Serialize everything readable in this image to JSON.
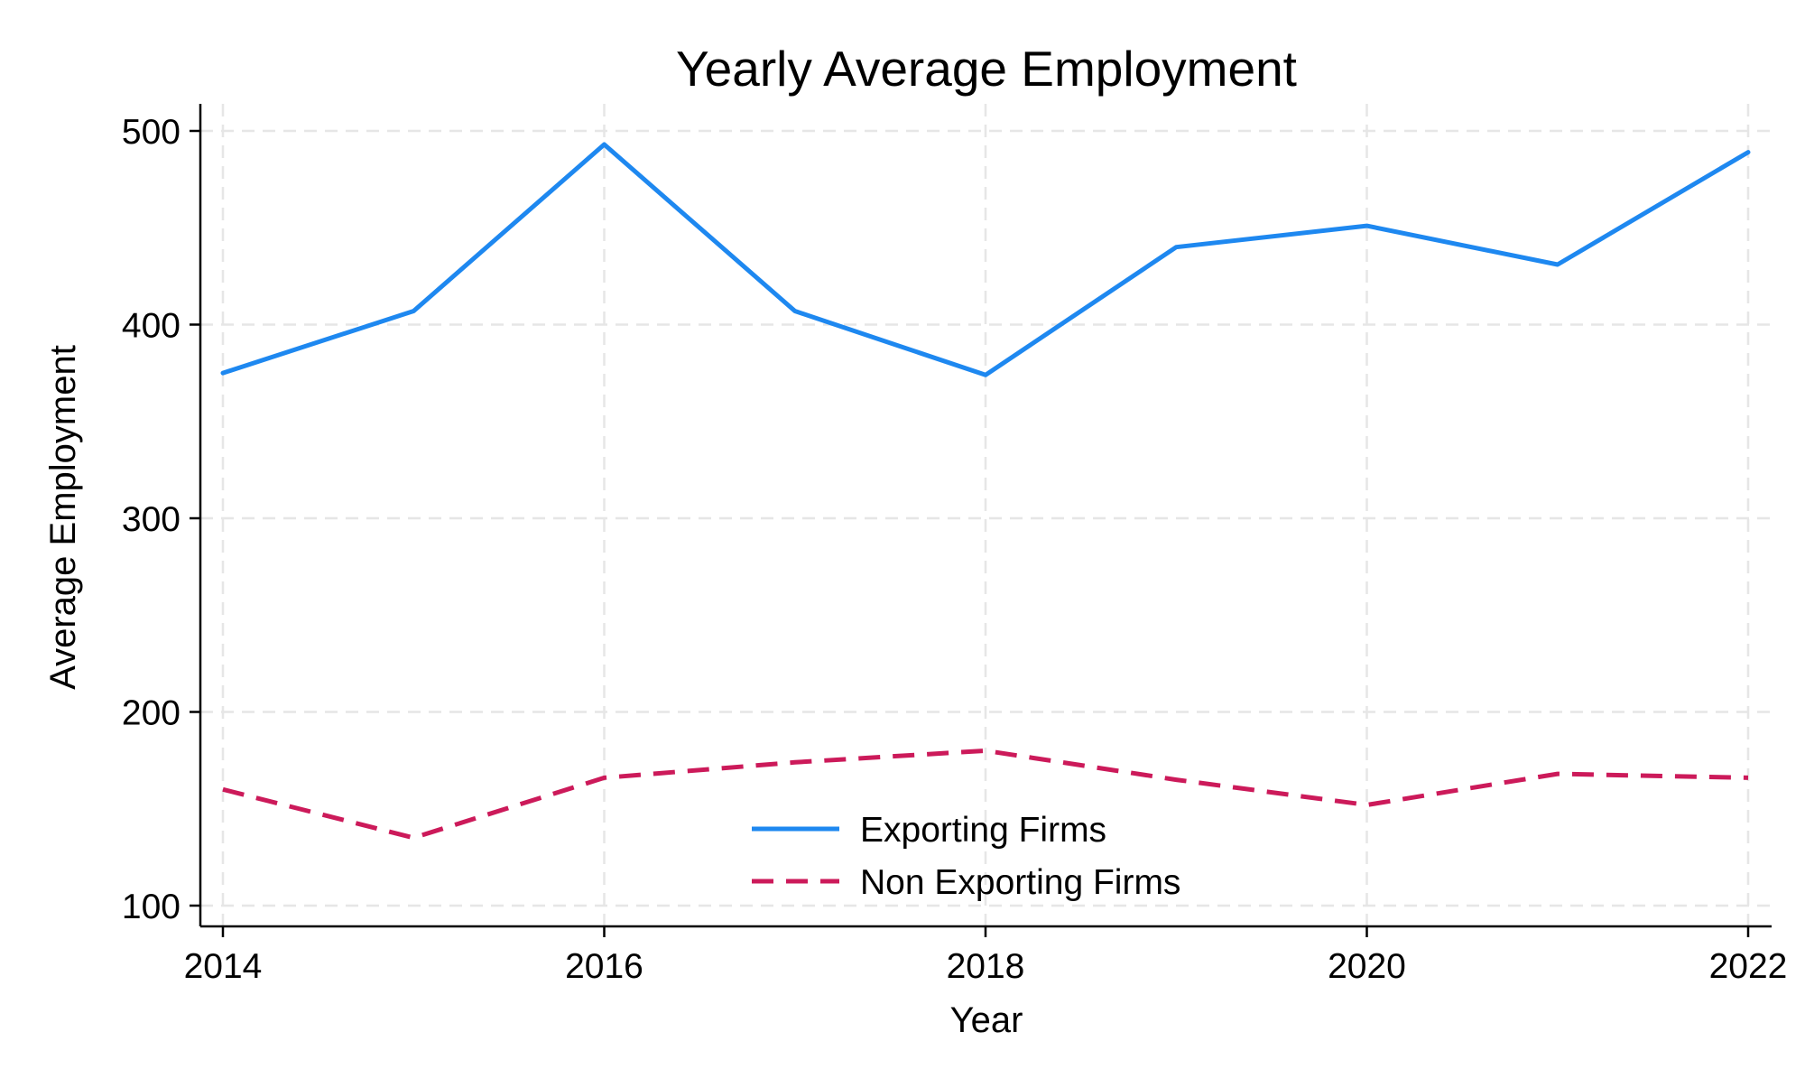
{
  "chart_data": {
    "type": "line",
    "title": "Yearly Average Employment",
    "xlabel": "Year",
    "ylabel": "Average Employment",
    "x": [
      2014,
      2015,
      2016,
      2017,
      2018,
      2019,
      2020,
      2021,
      2022
    ],
    "xlim": [
      2014,
      2022
    ],
    "ylim": [
      100,
      500
    ],
    "x_ticks": [
      2014,
      2016,
      2018,
      2020,
      2022
    ],
    "y_ticks": [
      100,
      200,
      300,
      400,
      500
    ],
    "grid": true,
    "legend_position": "bottom-center",
    "series": [
      {
        "name": "Exporting Firms",
        "values": [
          375,
          407,
          493,
          407,
          374,
          440,
          451,
          431,
          489
        ],
        "color": "#1e88f0",
        "style": "solid"
      },
      {
        "name": "Non Exporting Firms",
        "values": [
          160,
          135,
          166,
          174,
          180,
          165,
          152,
          168,
          166
        ],
        "color": "#cc1a5a",
        "style": "dashed"
      }
    ]
  }
}
